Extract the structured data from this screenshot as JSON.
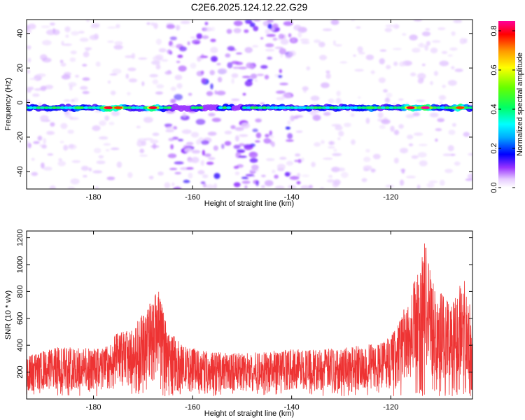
{
  "title": "C2E6.2025.124.12.22.G29",
  "chart_data": [
    {
      "type": "heatmap",
      "xlabel": "Height of straight line (km)",
      "ylabel": "Frequency (Hz)",
      "xlim": [
        -193.5,
        -103.5
      ],
      "ylim": [
        -50,
        48
      ],
      "x_ticks": [
        -180,
        -160,
        -140,
        -120
      ],
      "x_tick_labels": [
        "-180",
        "-160",
        "-140",
        "-120"
      ],
      "y_ticks": [
        -40,
        -20,
        0,
        20,
        40
      ],
      "y_tick_labels": [
        "-40",
        "-20",
        "0",
        "20",
        "40"
      ],
      "colorbar": {
        "label": "Normalized spectral amplitude",
        "range": [
          0,
          0.85
        ],
        "ticks": [
          0.0,
          0.2,
          0.4,
          0.6,
          0.8
        ],
        "tick_labels": [
          "0.0",
          "0.2",
          "0.4",
          "0.6",
          "0.8"
        ],
        "colors": [
          "#e6ccff",
          "#9933ff",
          "#0000ff",
          "#00aaff",
          "#00ffff",
          "#00ff66",
          "#66ff00",
          "#ffff00",
          "#ff9900",
          "#ff0000",
          "#ff0099"
        ]
      },
      "ridge": {
        "frequency_hz": -3,
        "hotspots": [
          {
            "x": -183,
            "value": 0.45
          },
          {
            "x": -177,
            "value": 0.8
          },
          {
            "x": -175,
            "value": 0.75
          },
          {
            "x": -168,
            "value": 0.8
          },
          {
            "x": -142,
            "value": 0.3
          },
          {
            "x": -124,
            "value": 0.45
          },
          {
            "x": -116,
            "value": 0.8
          },
          {
            "x": -113,
            "value": 0.85
          },
          {
            "x": -106,
            "value": 0.75
          }
        ]
      },
      "noise_band_x": [
        -165,
        -138
      ]
    },
    {
      "type": "line",
      "xlabel": "Height of straight line (km)",
      "ylabel": "SNR (10 * v/v)",
      "xlim": [
        -193.5,
        -103.5
      ],
      "ylim": [
        0,
        1250
      ],
      "x_ticks": [
        -180,
        -160,
        -140,
        -120
      ],
      "x_tick_labels": [
        "-180",
        "-160",
        "-140",
        "-120"
      ],
      "y_ticks": [
        200,
        400,
        600,
        800,
        1000,
        1200
      ],
      "y_tick_labels": [
        "200",
        "400",
        "600",
        "800",
        "1000",
        "1200"
      ],
      "series": [
        {
          "color": "#ee3333",
          "envelope": {
            "x": [
              -193.5,
              -190,
              -186,
              -182,
              -178,
              -175,
              -172,
              -170,
              -168,
              -167,
              -165,
              -162,
              -158,
              -150,
              -140,
              -130,
              -122,
              -119,
              -117,
              -115,
              -114,
              -113,
              -112,
              -111,
              -110,
              -108,
              -106,
              -105,
              -104,
              -103.5
            ],
            "y": [
              320,
              360,
              400,
              380,
              380,
              500,
              520,
              650,
              750,
              830,
              520,
              400,
              360,
              340,
              370,
              380,
              420,
              520,
              700,
              900,
              1000,
              1200,
              950,
              820,
              800,
              700,
              850,
              900,
              700,
              500
            ]
          }
        }
      ]
    }
  ]
}
